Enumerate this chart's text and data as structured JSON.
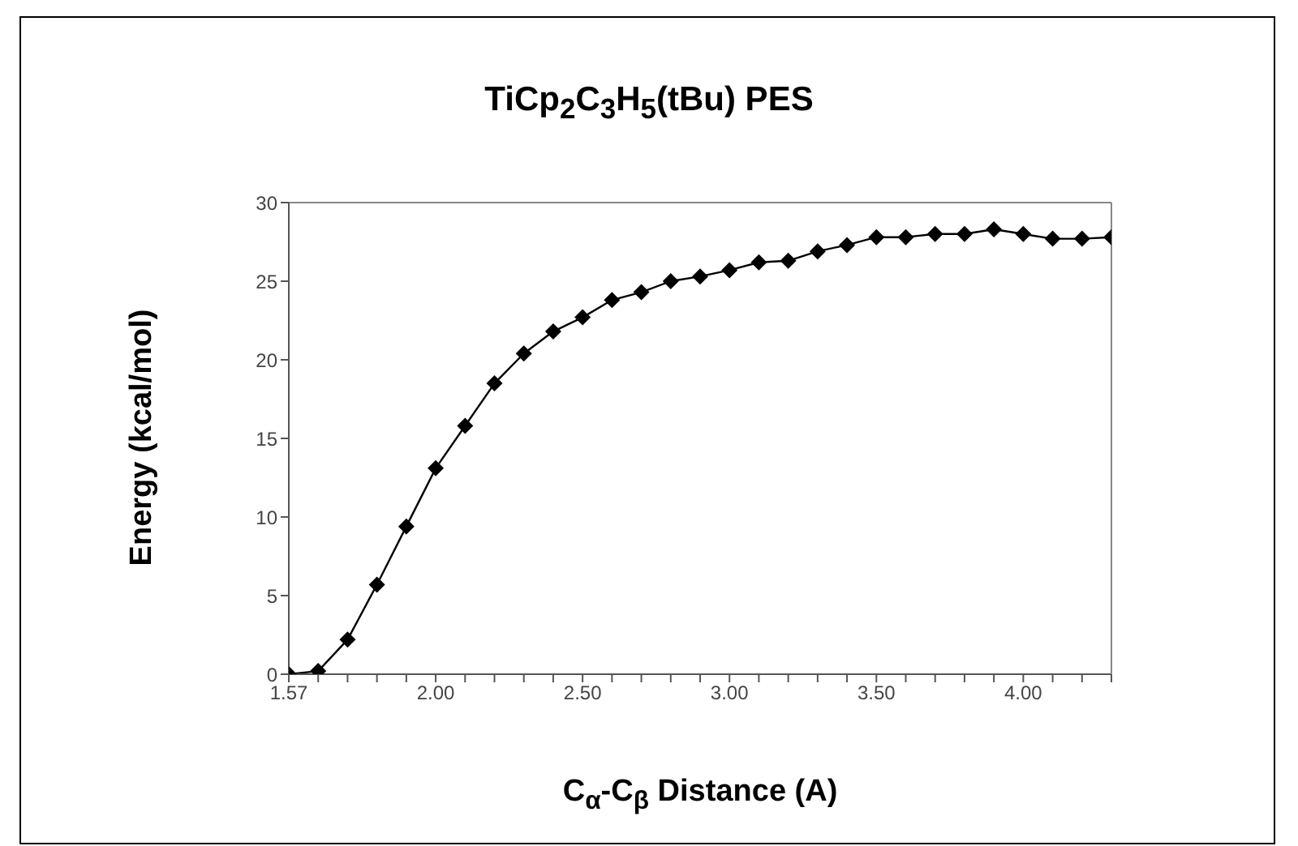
{
  "chart_data": {
    "type": "line",
    "title": "TiCp$_{2}$C$_{3}$H$_{5}$(tBu) PES",
    "xlabel": "C$_{α}$-C$_{β}$ Distance (A)",
    "ylabel": "Energy (kcal/mol)",
    "categories": [
      "1.57",
      null,
      null,
      null,
      null,
      "2.00",
      null,
      null,
      null,
      null,
      "2.50",
      null,
      null,
      null,
      null,
      "3.00",
      null,
      null,
      null,
      null,
      "3.50",
      null,
      null,
      null,
      null,
      "4.00",
      null,
      null,
      null
    ],
    "series": [
      {
        "color": "#000000",
        "values": [
          0,
          0.2,
          2.2,
          5.7,
          9.4,
          13.1,
          15.8,
          18.5,
          20.4,
          21.8,
          22.7,
          23.8,
          24.3,
          25.0,
          25.3,
          25.7,
          26.2,
          26.3,
          26.9,
          27.3,
          27.8,
          27.8,
          28.0,
          28.0,
          28.3,
          28.0,
          27.7,
          27.7,
          27.8
        ]
      }
    ],
    "ylim": [
      0,
      30
    ],
    "yticks": [
      0,
      5,
      10,
      15,
      20,
      25,
      30
    ],
    "marker": "diamond",
    "line_style": "solid",
    "grid": false,
    "legend": false
  }
}
